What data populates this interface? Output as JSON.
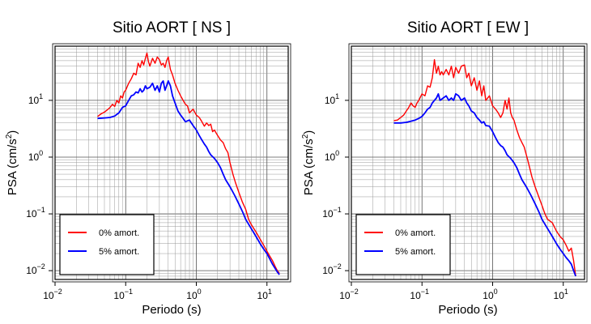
{
  "chart_data": [
    {
      "type": "line",
      "title": "Sitio AORT [ NS ]",
      "xlabel": "Periodo (s)",
      "ylabel_main": "PSA (cm/s",
      "ylabel_sup": "2",
      "ylabel_close": ")",
      "xscale": "log",
      "yscale": "log",
      "xlim": [
        0.01,
        20
      ],
      "ylim": [
        0.007,
        90
      ],
      "xticks": [
        {
          "value": 0.01,
          "base": "10",
          "exp": "−2"
        },
        {
          "value": 0.1,
          "base": "10",
          "exp": "−1"
        },
        {
          "value": 1,
          "base": "10",
          "exp": "0"
        },
        {
          "value": 10,
          "base": "10",
          "exp": "1"
        }
      ],
      "yticks": [
        {
          "value": 0.01,
          "base": "10",
          "exp": "−2"
        },
        {
          "value": 0.1,
          "base": "10",
          "exp": "−1"
        },
        {
          "value": 1,
          "base": "10",
          "exp": "0"
        },
        {
          "value": 10,
          "base": "10",
          "exp": "1"
        }
      ],
      "grid": true,
      "legend_position": "bottom-left",
      "series": [
        {
          "name": "0% amort.",
          "color": "#ff0000",
          "x": [
            0.04,
            0.045,
            0.05,
            0.055,
            0.06,
            0.065,
            0.07,
            0.075,
            0.08,
            0.085,
            0.09,
            0.095,
            0.1,
            0.11,
            0.12,
            0.13,
            0.14,
            0.15,
            0.16,
            0.17,
            0.18,
            0.19,
            0.2,
            0.21,
            0.22,
            0.24,
            0.26,
            0.28,
            0.3,
            0.32,
            0.34,
            0.36,
            0.38,
            0.4,
            0.43,
            0.46,
            0.5,
            0.55,
            0.6,
            0.65,
            0.7,
            0.75,
            0.8,
            0.9,
            1.0,
            1.1,
            1.2,
            1.3,
            1.4,
            1.5,
            1.6,
            1.7,
            1.8,
            2.0,
            2.2,
            2.4,
            2.6,
            2.8,
            3.0,
            3.3,
            3.6,
            4.0,
            4.5,
            5.0,
            5.5,
            6.0,
            7.0,
            8.0,
            9.0,
            10.0,
            11.0,
            12.0,
            13.0,
            14.0,
            15.0
          ],
          "y": [
            5.2,
            5.8,
            6.2,
            6.8,
            7.5,
            8.5,
            7.8,
            10,
            9,
            12,
            11,
            14,
            15,
            20,
            24,
            30,
            28,
            45,
            38,
            50,
            42,
            55,
            68,
            48,
            40,
            55,
            45,
            58,
            52,
            42,
            45,
            38,
            50,
            58,
            35,
            28,
            20,
            15,
            12,
            10,
            8.5,
            8,
            6,
            7,
            5.5,
            5,
            4.2,
            3.5,
            4,
            3.6,
            3.8,
            2.8,
            3,
            2.4,
            2,
            1.8,
            1.4,
            1.2,
            0.8,
            0.5,
            0.35,
            0.24,
            0.16,
            0.12,
            0.08,
            0.065,
            0.048,
            0.036,
            0.028,
            0.022,
            0.018,
            0.015,
            0.012,
            0.01,
            0.009
          ]
        },
        {
          "name": "5% amort.",
          "color": "#0000ff",
          "x": [
            0.04,
            0.05,
            0.06,
            0.07,
            0.08,
            0.09,
            0.1,
            0.11,
            0.12,
            0.13,
            0.14,
            0.15,
            0.16,
            0.17,
            0.18,
            0.19,
            0.2,
            0.22,
            0.24,
            0.26,
            0.28,
            0.3,
            0.32,
            0.34,
            0.36,
            0.38,
            0.4,
            0.43,
            0.46,
            0.5,
            0.55,
            0.6,
            0.65,
            0.7,
            0.8,
            0.9,
            1.0,
            1.1,
            1.2,
            1.3,
            1.4,
            1.5,
            1.6,
            1.8,
            2.0,
            2.2,
            2.4,
            2.6,
            3.0,
            3.5,
            4.0,
            4.5,
            5.0,
            6.0,
            7.0,
            8.0,
            9.0,
            10.0,
            11.0,
            12.0,
            13.0,
            14.0,
            15.0
          ],
          "y": [
            4.8,
            4.9,
            5,
            5.3,
            6,
            7.5,
            8,
            10,
            12,
            12.5,
            14,
            13.5,
            16,
            14,
            15,
            18,
            16,
            17,
            20,
            15,
            18,
            14,
            20,
            22,
            15,
            18,
            22,
            18,
            12,
            9,
            6.5,
            5.5,
            4.8,
            4.2,
            4.5,
            3.6,
            3,
            2.4,
            2,
            1.7,
            1.5,
            1.25,
            1.1,
            0.95,
            0.8,
            0.65,
            0.5,
            0.4,
            0.3,
            0.21,
            0.15,
            0.11,
            0.08,
            0.055,
            0.04,
            0.03,
            0.024,
            0.02,
            0.016,
            0.013,
            0.011,
            0.0095,
            0.0085
          ]
        }
      ]
    },
    {
      "type": "line",
      "title": "Sitio AORT [ EW ]",
      "xlabel": "Periodo (s)",
      "ylabel_main": "PSA (cm/s",
      "ylabel_sup": "2",
      "ylabel_close": ")",
      "xscale": "log",
      "yscale": "log",
      "xlim": [
        0.01,
        20
      ],
      "ylim": [
        0.007,
        90
      ],
      "xticks": [
        {
          "value": 0.01,
          "base": "10",
          "exp": "−2"
        },
        {
          "value": 0.1,
          "base": "10",
          "exp": "−1"
        },
        {
          "value": 1,
          "base": "10",
          "exp": "0"
        },
        {
          "value": 10,
          "base": "10",
          "exp": "1"
        }
      ],
      "yticks": [
        {
          "value": 0.01,
          "base": "10",
          "exp": "−2"
        },
        {
          "value": 0.1,
          "base": "10",
          "exp": "−1"
        },
        {
          "value": 1,
          "base": "10",
          "exp": "0"
        },
        {
          "value": 10,
          "base": "10",
          "exp": "1"
        }
      ],
      "grid": true,
      "legend_position": "bottom-left",
      "series": [
        {
          "name": "0% amort.",
          "color": "#ff0000",
          "x": [
            0.04,
            0.045,
            0.05,
            0.055,
            0.06,
            0.065,
            0.07,
            0.075,
            0.08,
            0.085,
            0.09,
            0.1,
            0.11,
            0.12,
            0.13,
            0.14,
            0.15,
            0.16,
            0.17,
            0.18,
            0.19,
            0.2,
            0.22,
            0.24,
            0.26,
            0.28,
            0.3,
            0.33,
            0.36,
            0.4,
            0.43,
            0.46,
            0.5,
            0.55,
            0.6,
            0.65,
            0.7,
            0.75,
            0.8,
            0.9,
            1.0,
            1.1,
            1.2,
            1.3,
            1.4,
            1.5,
            1.6,
            1.7,
            1.8,
            1.9,
            2.0,
            2.2,
            2.4,
            2.6,
            2.8,
            3.0,
            3.3,
            3.6,
            4.0,
            4.5,
            5.0,
            5.5,
            6.0,
            7.0,
            8.0,
            9.0,
            10.0,
            11.0,
            12.0,
            13.0,
            14.0,
            15.0
          ],
          "y": [
            4.4,
            4.5,
            5,
            5.5,
            6.5,
            7.5,
            9,
            8,
            7.5,
            9,
            10,
            13,
            12,
            18,
            17,
            25,
            52,
            30,
            40,
            28,
            32,
            28,
            35,
            28,
            40,
            25,
            38,
            30,
            40,
            42,
            25,
            30,
            18,
            25,
            15,
            22,
            12,
            18,
            10,
            12,
            8,
            7,
            6,
            5,
            6,
            10,
            7,
            11,
            6,
            5,
            4.5,
            3,
            2.2,
            1.8,
            1.5,
            1.1,
            0.7,
            0.45,
            0.3,
            0.2,
            0.14,
            0.1,
            0.08,
            0.07,
            0.05,
            0.04,
            0.035,
            0.028,
            0.022,
            0.025,
            0.015,
            0.008
          ]
        },
        {
          "name": "5% amort.",
          "color": "#0000ff",
          "x": [
            0.04,
            0.05,
            0.06,
            0.07,
            0.08,
            0.09,
            0.1,
            0.11,
            0.12,
            0.13,
            0.14,
            0.15,
            0.16,
            0.17,
            0.18,
            0.2,
            0.22,
            0.24,
            0.26,
            0.28,
            0.3,
            0.33,
            0.36,
            0.4,
            0.43,
            0.46,
            0.5,
            0.55,
            0.6,
            0.65,
            0.7,
            0.75,
            0.8,
            0.9,
            1.0,
            1.1,
            1.2,
            1.3,
            1.4,
            1.5,
            1.6,
            1.8,
            2.0,
            2.2,
            2.4,
            2.6,
            3.0,
            3.5,
            4.0,
            4.5,
            5.0,
            6.0,
            7.0,
            8.0,
            9.0,
            10.0,
            11.0,
            12.0,
            13.0,
            14.0,
            15.0
          ],
          "y": [
            4,
            4,
            4.1,
            4.3,
            4.5,
            4.8,
            5.2,
            6,
            7,
            7.5,
            9,
            10,
            11,
            13,
            10,
            11,
            12,
            10,
            11,
            10,
            13,
            12,
            10,
            11,
            9,
            8,
            6.5,
            6,
            5,
            4.5,
            4,
            4.2,
            3.6,
            3.5,
            2.8,
            2.2,
            1.8,
            1.6,
            1.5,
            1.3,
            1.1,
            0.95,
            0.8,
            0.65,
            0.5,
            0.4,
            0.3,
            0.21,
            0.15,
            0.11,
            0.08,
            0.055,
            0.04,
            0.03,
            0.024,
            0.02,
            0.017,
            0.015,
            0.013,
            0.01,
            0.008
          ]
        }
      ]
    }
  ]
}
